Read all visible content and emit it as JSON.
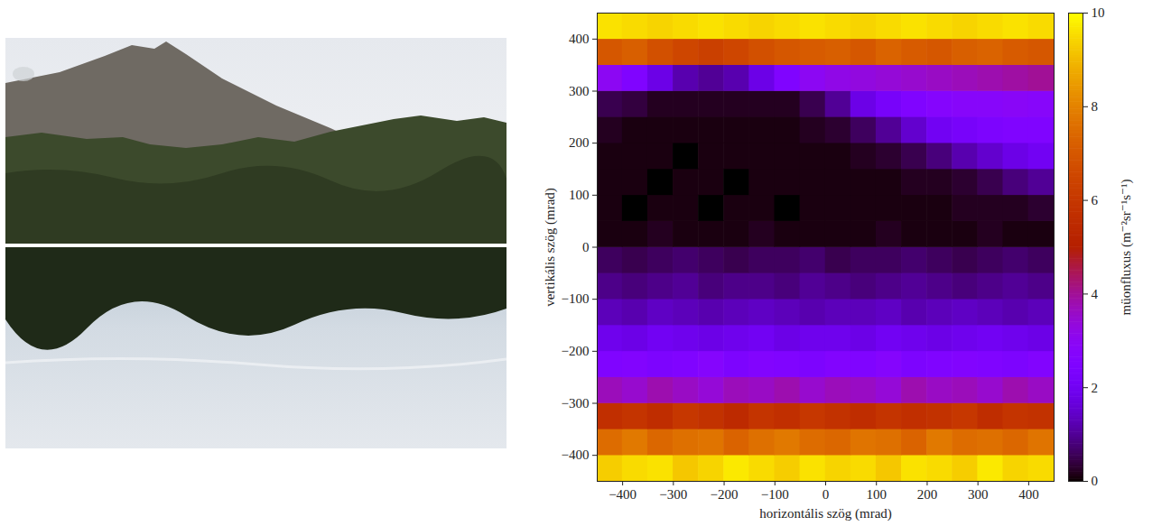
{
  "chart_data": {
    "type": "heatmap",
    "xlabel": "horizontális szög (mrad)",
    "ylabel": "vertikális szög (mrad)",
    "xlim": [
      -450,
      450
    ],
    "ylim": [
      -450,
      450
    ],
    "xticks": [
      -400,
      -300,
      -200,
      -100,
      0,
      100,
      200,
      300,
      400
    ],
    "yticks": [
      -400,
      -300,
      -200,
      -100,
      0,
      100,
      200,
      300,
      400
    ],
    "x_bins": [
      -450,
      -400,
      -350,
      -300,
      -250,
      -200,
      -150,
      -100,
      -50,
      0,
      50,
      100,
      150,
      200,
      250,
      300,
      350,
      400,
      450
    ],
    "y_bins": [
      -450,
      -400,
      -350,
      -300,
      -250,
      -200,
      -150,
      -100,
      -50,
      0,
      50,
      100,
      150,
      200,
      250,
      300,
      350,
      400,
      450
    ],
    "flux": [
      [
        9.3,
        9.5,
        9.6,
        9.2,
        9.4,
        9.7,
        9.5,
        9.3,
        9.6,
        9.4,
        9.5,
        9.2,
        9.6,
        9.5,
        9.3,
        9.7,
        9.4,
        9.5
      ],
      [
        7.5,
        7.8,
        7.4,
        7.6,
        7.7,
        7.3,
        7.6,
        7.8,
        7.5,
        7.4,
        7.7,
        7.6,
        7.3,
        7.8,
        7.5,
        7.6,
        7.4,
        7.7
      ],
      [
        5.7,
        5.9,
        5.6,
        6.0,
        5.8,
        5.5,
        5.9,
        5.7,
        6.0,
        5.8,
        5.6,
        5.9,
        5.7,
        5.8,
        6.0,
        5.6,
        5.9,
        5.8
      ],
      [
        3.7,
        3.5,
        3.8,
        3.6,
        3.4,
        3.7,
        3.6,
        3.8,
        3.5,
        3.7,
        3.6,
        3.4,
        3.8,
        3.6,
        3.7,
        3.5,
        3.8,
        3.6
      ],
      [
        2.5,
        2.6,
        2.4,
        2.5,
        2.7,
        2.4,
        2.6,
        2.5,
        2.4,
        2.6,
        2.5,
        2.7,
        2.4,
        2.5,
        2.6,
        2.5,
        2.4,
        2.6
      ],
      [
        1.9,
        1.8,
        2.0,
        1.9,
        1.8,
        1.9,
        2.0,
        1.8,
        1.9,
        1.9,
        1.8,
        2.0,
        1.9,
        1.8,
        1.9,
        2.0,
        1.9,
        1.8
      ],
      [
        1.3,
        1.2,
        1.4,
        1.3,
        1.2,
        1.3,
        1.4,
        1.3,
        1.2,
        1.3,
        1.3,
        1.4,
        1.2,
        1.3,
        1.4,
        1.3,
        1.2,
        1.3
      ],
      [
        0.9,
        0.8,
        0.9,
        1.0,
        0.8,
        0.9,
        0.9,
        0.8,
        1.0,
        0.9,
        0.8,
        0.9,
        1.0,
        0.9,
        0.8,
        0.9,
        1.0,
        0.9
      ],
      [
        0.6,
        0.5,
        0.6,
        0.7,
        0.6,
        0.5,
        0.6,
        0.6,
        0.7,
        0.5,
        0.6,
        0.6,
        0.7,
        0.6,
        0.5,
        0.6,
        0.7,
        0.6
      ],
      [
        0.1,
        0.1,
        0.2,
        0.1,
        0.1,
        0.1,
        0.2,
        0.1,
        0.1,
        0.1,
        0.1,
        0.2,
        0.1,
        0.1,
        0.1,
        0.2,
        0.1,
        0.1
      ],
      [
        0.1,
        0.0,
        0.1,
        0.1,
        0.0,
        0.1,
        0.1,
        0.0,
        0.1,
        0.1,
        0.1,
        0.1,
        0.1,
        0.1,
        0.2,
        0.2,
        0.2,
        0.3
      ],
      [
        0.1,
        0.1,
        0.0,
        0.1,
        0.1,
        0.0,
        0.1,
        0.1,
        0.1,
        0.1,
        0.1,
        0.1,
        0.2,
        0.2,
        0.3,
        0.5,
        0.8,
        1.0
      ],
      [
        0.1,
        0.1,
        0.1,
        0.0,
        0.1,
        0.1,
        0.1,
        0.1,
        0.1,
        0.1,
        0.2,
        0.3,
        0.5,
        0.8,
        1.2,
        1.5,
        1.8,
        2.0
      ],
      [
        0.2,
        0.1,
        0.1,
        0.1,
        0.1,
        0.1,
        0.1,
        0.1,
        0.2,
        0.3,
        0.6,
        1.0,
        1.5,
        2.0,
        2.2,
        2.4,
        2.5,
        2.5
      ],
      [
        0.5,
        0.4,
        0.2,
        0.2,
        0.2,
        0.2,
        0.2,
        0.2,
        0.5,
        1.0,
        1.8,
        2.2,
        2.5,
        2.7,
        2.8,
        2.8,
        2.9,
        2.8
      ],
      [
        3.0,
        2.5,
        1.8,
        1.2,
        1.0,
        1.2,
        1.8,
        2.5,
        3.0,
        3.2,
        3.3,
        3.4,
        3.5,
        3.6,
        3.7,
        3.8,
        3.9,
        4.0
      ],
      [
        7.0,
        7.2,
        6.8,
        6.5,
        6.3,
        6.5,
        6.8,
        7.0,
        7.1,
        7.2,
        7.0,
        7.3,
        7.1,
        7.0,
        7.2,
        7.3,
        7.1,
        7.0
      ],
      [
        9.6,
        9.5,
        9.4,
        9.5,
        9.6,
        9.5,
        9.4,
        9.5,
        9.6,
        9.5,
        9.4,
        9.5,
        9.6,
        9.5,
        9.4,
        9.5,
        9.6,
        9.5
      ]
    ],
    "colorbar": {
      "label": "müonfluxus (m⁻²sr⁻¹s⁻¹)",
      "lim": [
        0,
        10
      ],
      "ticks": [
        0,
        2,
        4,
        6,
        8,
        10
      ]
    }
  }
}
